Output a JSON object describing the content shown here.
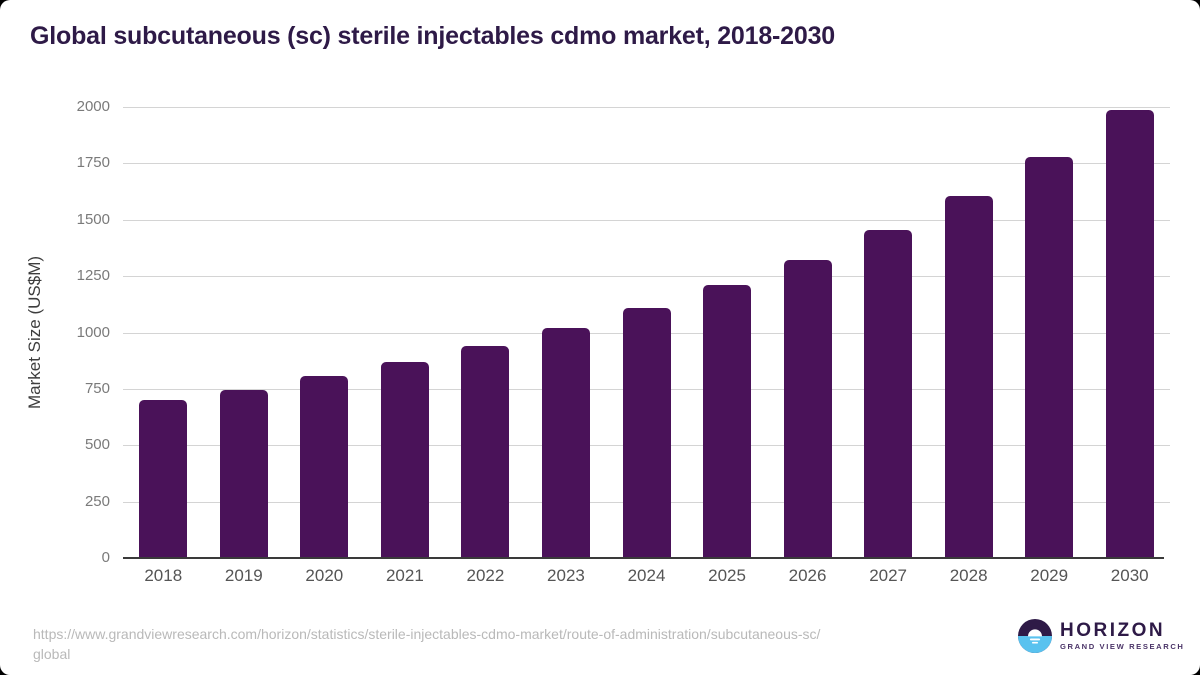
{
  "page": {
    "title": "Global subcutaneous (sc) sterile injectables cdmo market, 2018-2030",
    "source_url": "https://www.grandviewresearch.com/horizon/statistics/sterile-injectables-cdmo-market/route-of-administration/subcutaneous-sc/global",
    "logo": {
      "name": "HORIZON",
      "subname": "GRAND VIEW RESEARCH"
    }
  },
  "chart_data": {
    "type": "bar",
    "title": "Global subcutaneous (sc) sterile injectables cdmo market, 2018-2030",
    "categories": [
      "2018",
      "2019",
      "2020",
      "2021",
      "2022",
      "2023",
      "2024",
      "2025",
      "2026",
      "2027",
      "2028",
      "2029",
      "2030"
    ],
    "values": [
      700,
      745,
      805,
      870,
      940,
      1020,
      1110,
      1210,
      1320,
      1455,
      1605,
      1780,
      1985
    ],
    "xlabel": "",
    "ylabel": "Market Size (US$M)",
    "ylim": [
      0,
      2000
    ],
    "yticks": [
      0,
      250,
      500,
      750,
      1000,
      1250,
      1500,
      1750,
      2000
    ],
    "grid": "horizontal",
    "legend": "none"
  },
  "colors": {
    "title_text": "#2e1a47",
    "bar_fill": "#4a1259",
    "axis_title_text": "#3d3d3d",
    "y_tick_text": "#7a7a7a",
    "x_tick_text": "#555555",
    "gridline": "#d4d4d4",
    "baseline": "#3a3a3a",
    "url_text": "#b9b9b9",
    "logo_dark": "#2e1a47",
    "logo_blue": "#59c2ef",
    "logo_subname_text": "#4a3367"
  }
}
